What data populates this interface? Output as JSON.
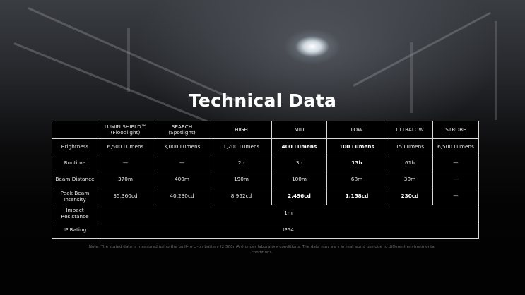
{
  "title": "Technical Data",
  "columns": [
    "",
    "LUMIN SHIELD™\n(Floodlight)",
    "SEARCH\n(Spotlight)",
    "HIGH",
    "MID",
    "LOW",
    "ULTRALOW",
    "STROBE"
  ],
  "column_lines": [
    [
      "LUMIN SHIELD™",
      "(Floodlight)"
    ],
    [
      "SEARCH",
      "(Spotlight)"
    ],
    [
      "HIGH"
    ],
    [
      "MID"
    ],
    [
      "LOW"
    ],
    [
      "ULTRALOW"
    ],
    [
      "STROBE"
    ]
  ],
  "rows": [
    {
      "label": "Brightness",
      "values": [
        "6,500 Lumens",
        "3,000 Lumens",
        "1,200 Lumens",
        "400 Lumens",
        "100 Lumens",
        "15 Lumens",
        "6,500 Lumens"
      ]
    },
    {
      "label": "Runtime",
      "values": [
        "—",
        "—",
        "2h",
        "3h",
        "13h",
        "61h",
        "—"
      ]
    },
    {
      "label": "Beam Distance",
      "values": [
        "370m",
        "400m",
        "190m",
        "100m",
        "68m",
        "30m",
        "—"
      ]
    },
    {
      "label": "Peak Beam Intensity",
      "values": [
        "35,360cd",
        "40,230cd",
        "8,952cd",
        "2,496cd",
        "1,158cd",
        "230cd",
        "—"
      ]
    }
  ],
  "span_rows": [
    {
      "label": "Impact Resistance",
      "value": "1m"
    },
    {
      "label": "IP Rating",
      "value": "IP54"
    }
  ],
  "note": "Note: The stated data is measured using the built-in Li-on battery (2,500mAh) under laboratory conditions. The data may vary in real world use due to different environmental conditions."
}
